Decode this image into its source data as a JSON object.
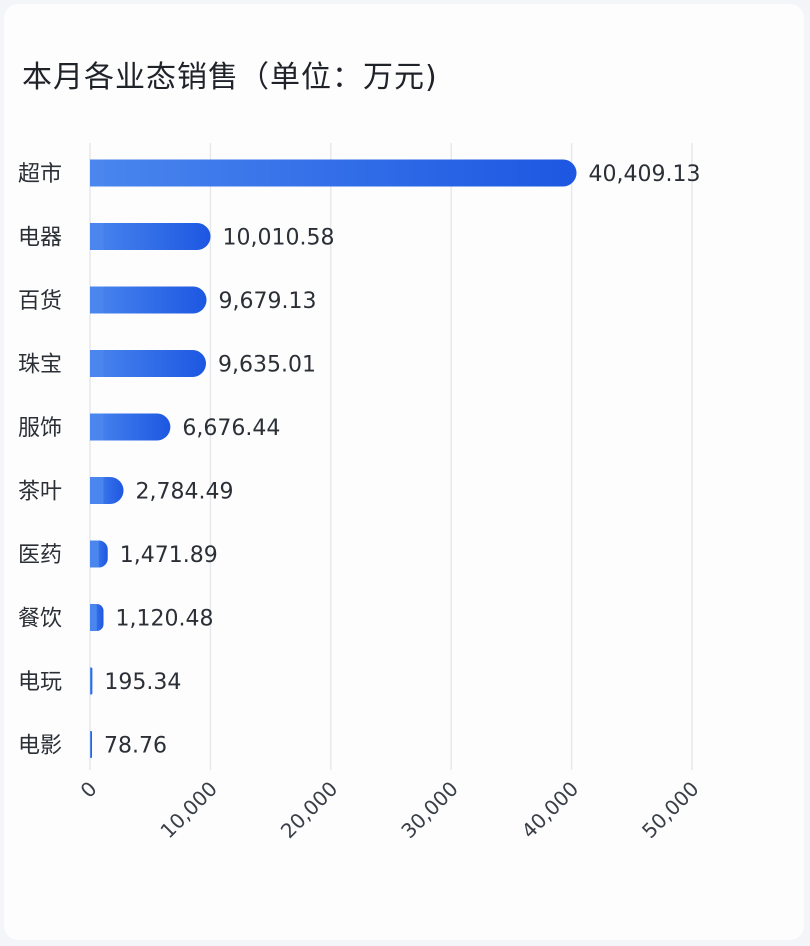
{
  "header": {
    "title": "本月各业态销售（单位：万元)"
  },
  "chart_data": {
    "type": "bar",
    "orientation": "horizontal",
    "categories": [
      "超市",
      "电器",
      "百货",
      "珠宝",
      "服饰",
      "茶叶",
      "医药",
      "餐饮",
      "电玩",
      "电影"
    ],
    "values": [
      40409.13,
      10010.58,
      9679.13,
      9635.01,
      6676.44,
      2784.49,
      1471.89,
      1120.48,
      195.34,
      78.76
    ],
    "value_labels": [
      "40,409.13",
      "10,010.58",
      "9,679.13",
      "9,635.01",
      "6,676.44",
      "2,784.49",
      "1,471.89",
      "1,120.48",
      "195.34",
      "78.76"
    ],
    "xlim": [
      0,
      50000
    ],
    "x_ticks": [
      0,
      10000,
      20000,
      30000,
      40000,
      50000
    ],
    "x_tick_labels": [
      "0",
      "10,000",
      "20,000",
      "30,000",
      "40,000",
      "50,000"
    ],
    "grid": "vertical",
    "colors": {
      "bar_start": "#4a86ee",
      "bar_end": "#1d57e2",
      "grid": "#e6e8ec",
      "text": "#2b2f36"
    }
  }
}
